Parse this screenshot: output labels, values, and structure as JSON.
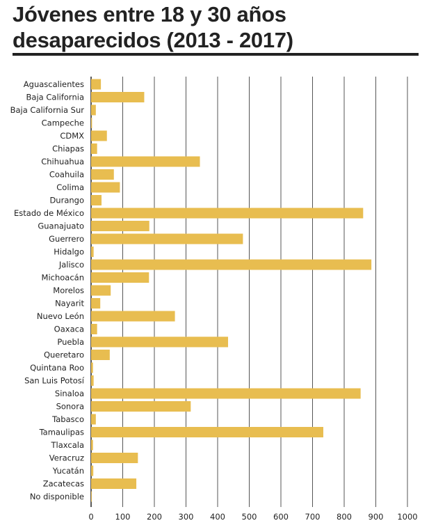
{
  "chart_data": {
    "type": "bar",
    "orientation": "horizontal",
    "title": "Jóvenes entre 18 y 30 años desaparecidos (2013 - 2017)",
    "xlim": [
      0,
      1000
    ],
    "xticks": [
      0,
      100,
      200,
      300,
      400,
      500,
      600,
      700,
      800,
      900,
      1000
    ],
    "grid": "vertical",
    "bar_color": "#e8bd50",
    "categories": [
      "Aguascalientes",
      "Baja California",
      "Baja California Sur",
      "Campeche",
      "CDMX",
      "Chiapas",
      "Chihuahua",
      "Coahuila",
      "Colima",
      "Durango",
      "Estado de México",
      "Guanajuato",
      "Guerrero",
      "Hidalgo",
      "Jalisco",
      "Michoacán",
      "Morelos",
      "Nayarit",
      "Nuevo León",
      "Oaxaca",
      "Puebla",
      "Queretaro",
      "Quintana Roo",
      "San Luis Potosí",
      "Sinaloa",
      "Sonora",
      "Tabasco",
      "Tamaulipas",
      "Tlaxcala",
      "Veracruz",
      "Yucatán",
      "Zacatecas",
      "No disponible"
    ],
    "values": [
      31,
      168,
      15,
      3,
      50,
      19,
      344,
      72,
      91,
      33,
      860,
      184,
      480,
      8,
      886,
      183,
      62,
      29,
      265,
      19,
      433,
      59,
      6,
      8,
      852,
      315,
      15,
      734,
      6,
      148,
      7,
      143,
      2
    ]
  }
}
